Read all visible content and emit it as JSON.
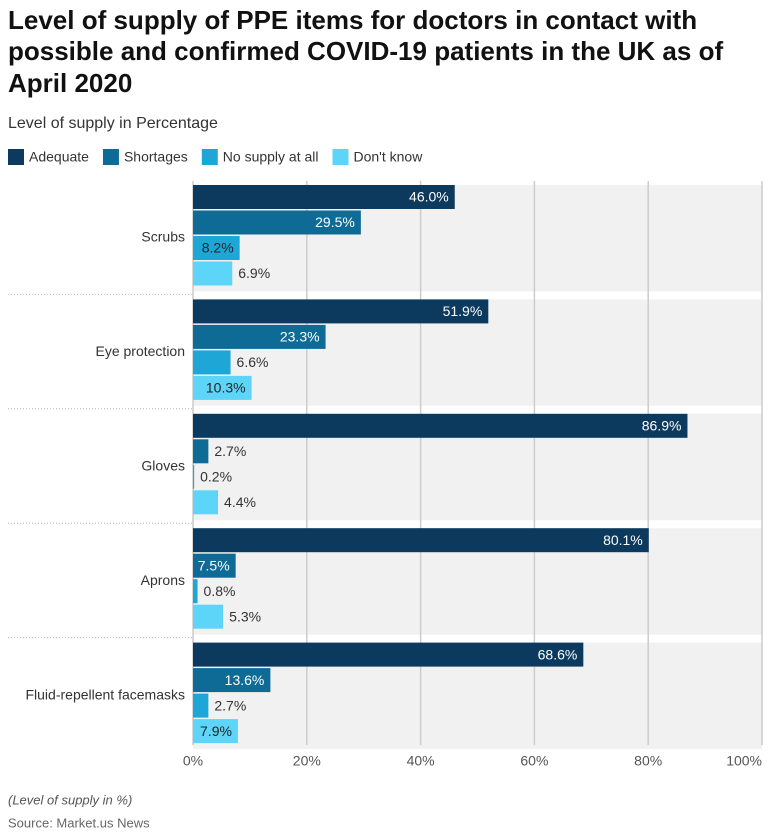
{
  "chart_data": {
    "type": "bar",
    "orientation": "horizontal",
    "title": [
      "Level of supply of PPE items for doctors in contact with",
      "possible and confirmed COVID-19 patients in the UK as of",
      "April 2020"
    ],
    "subtitle": "Level of supply in Percentage",
    "categories": [
      "Scrubs",
      "Eye protection",
      "Gloves",
      "Aprons",
      "Fluid-repellent facemasks"
    ],
    "series": [
      {
        "name": "Adequate",
        "color": "#0b3a5e",
        "values": [
          46.0,
          51.9,
          86.9,
          80.1,
          68.6
        ],
        "value_labels": [
          "46.0%",
          "51.9%",
          "86.9%",
          "80.1%",
          "68.6%"
        ]
      },
      {
        "name": "Shortages",
        "color": "#0e6b96",
        "values": [
          29.5,
          23.3,
          2.7,
          7.5,
          13.6
        ],
        "value_labels": [
          "29.5%",
          "23.3%",
          "2.7%",
          "7.5%",
          "13.6%"
        ]
      },
      {
        "name": "No supply at all",
        "color": "#1ea7d6",
        "values": [
          8.2,
          6.6,
          0.2,
          0.8,
          2.7
        ],
        "value_labels": [
          "8.2%",
          "6.6%",
          "0.2%",
          "0.8%",
          "2.7%"
        ]
      },
      {
        "name": "Don't know",
        "color": "#5dd5f8",
        "values": [
          6.9,
          10.3,
          4.4,
          5.3,
          7.9
        ],
        "value_labels": [
          "6.9%",
          "10.3%",
          "4.4%",
          "5.3%",
          "7.9%"
        ]
      }
    ],
    "xlim": [
      0,
      100
    ],
    "xticks": [
      {
        "value": 0,
        "label": "0%"
      },
      {
        "value": 20,
        "label": "20%"
      },
      {
        "value": 40,
        "label": "40%"
      },
      {
        "value": 60,
        "label": "60%"
      },
      {
        "value": 80,
        "label": "80%"
      },
      {
        "value": 100,
        "label": "100%"
      }
    ],
    "grid": true,
    "footnote": "(Level of supply in %)",
    "source": "Source: Market.us News"
  }
}
